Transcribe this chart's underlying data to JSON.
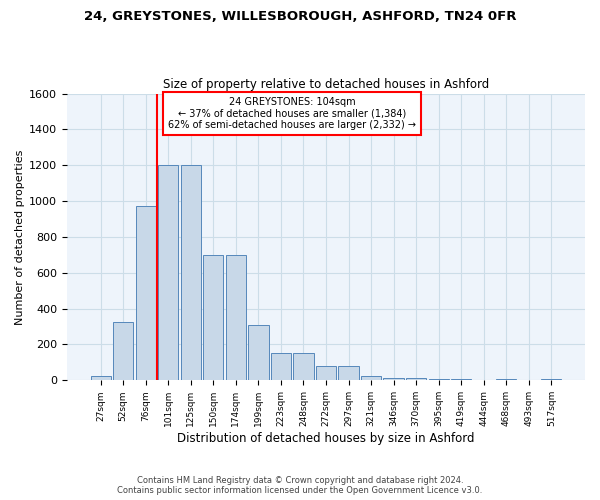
{
  "title1": "24, GREYSTONES, WILLESBOROUGH, ASHFORD, TN24 0FR",
  "title2": "Size of property relative to detached houses in Ashford",
  "xlabel": "Distribution of detached houses by size in Ashford",
  "ylabel": "Number of detached properties",
  "annotation_line1": "24 GREYSTONES: 104sqm",
  "annotation_line2": "← 37% of detached houses are smaller (1,384)",
  "annotation_line3": "62% of semi-detached houses are larger (2,332) →",
  "footer1": "Contains HM Land Registry data © Crown copyright and database right 2024.",
  "footer2": "Contains public sector information licensed under the Open Government Licence v3.0.",
  "bar_values": [
    25,
    325,
    970,
    1200,
    1200,
    700,
    700,
    310,
    155,
    155,
    80,
    80,
    25,
    15,
    15,
    10,
    10,
    0,
    10,
    0,
    10
  ],
  "bin_labels": [
    "27sqm",
    "52sqm",
    "76sqm",
    "101sqm",
    "125sqm",
    "150sqm",
    "174sqm",
    "199sqm",
    "223sqm",
    "248sqm",
    "272sqm",
    "297sqm",
    "321sqm",
    "346sqm",
    "370sqm",
    "395sqm",
    "419sqm",
    "444sqm",
    "468sqm",
    "493sqm",
    "517sqm"
  ],
  "bar_color": "#c8d8e8",
  "bar_edge_color": "#5588bb",
  "grid_color": "#ccdde8",
  "bg_color": "#eef4fb",
  "vline_color": "red",
  "vline_x_index": 3,
  "annotation_box_color": "white",
  "annotation_box_edge": "red",
  "ylim": [
    0,
    1600
  ],
  "yticks": [
    0,
    200,
    400,
    600,
    800,
    1000,
    1200,
    1400,
    1600
  ]
}
